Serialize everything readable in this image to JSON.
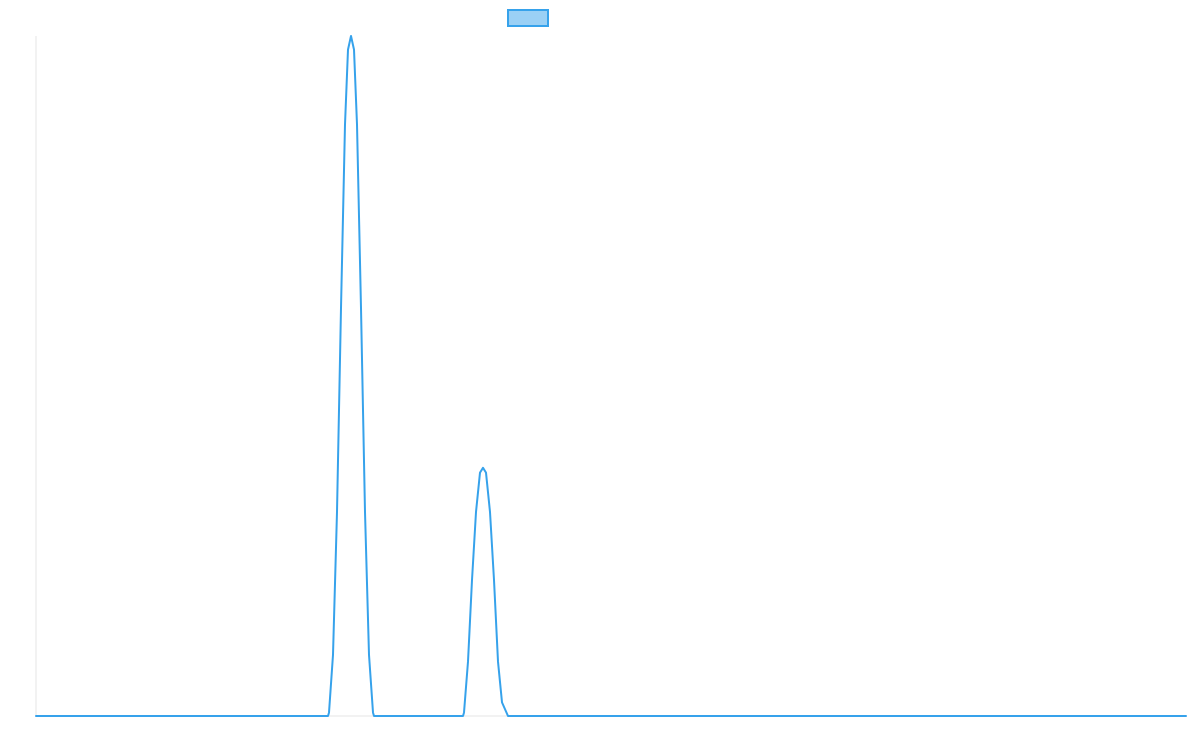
{
  "chart_data": {
    "type": "line",
    "title": "",
    "xlabel": "",
    "ylabel": "",
    "xlim": [
      0,
      1150
    ],
    "ylim": [
      0,
      100
    ],
    "grid": false,
    "legend": {
      "position": "top-center",
      "swatch_fill": "#9ad0f5",
      "swatch_stroke": "#36a2eb"
    },
    "colors": {
      "line": "#36a2eb",
      "axis": "#e5e5e5"
    },
    "series": [
      {
        "label": "",
        "points": [
          [
            0,
            0
          ],
          [
            292,
            0
          ],
          [
            293,
            0.5
          ],
          [
            297,
            9
          ],
          [
            301,
            30
          ],
          [
            305,
            60
          ],
          [
            309,
            87
          ],
          [
            312,
            98
          ],
          [
            315,
            100
          ],
          [
            318,
            98
          ],
          [
            321,
            87
          ],
          [
            325,
            60
          ],
          [
            329,
            30
          ],
          [
            333,
            9
          ],
          [
            337,
            0.5
          ],
          [
            338,
            0
          ],
          [
            427,
            0
          ],
          [
            428,
            0.5
          ],
          [
            432,
            8
          ],
          [
            436,
            20
          ],
          [
            440,
            30
          ],
          [
            444,
            35.8
          ],
          [
            447,
            36.5
          ],
          [
            450,
            35.8
          ],
          [
            454,
            30
          ],
          [
            458,
            20
          ],
          [
            462,
            8
          ],
          [
            466,
            2
          ],
          [
            472,
            0
          ],
          [
            1150,
            0
          ]
        ]
      }
    ]
  }
}
